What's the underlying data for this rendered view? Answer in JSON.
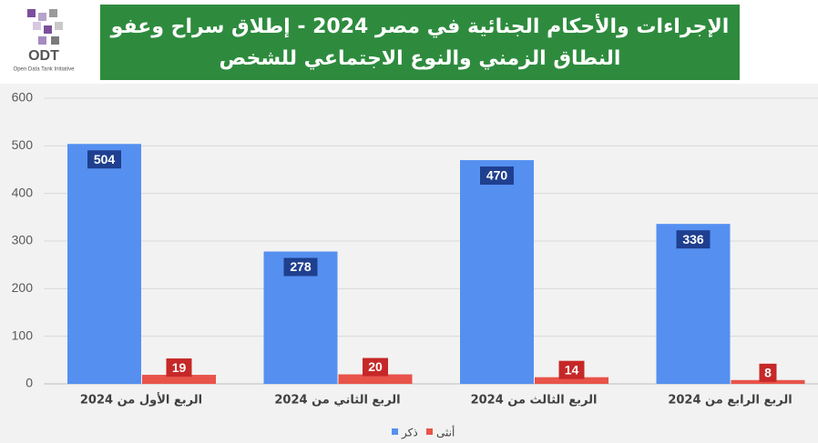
{
  "header": {
    "logo": "ODT",
    "tagline": "Open Data Tank Initiative"
  },
  "chart_data": {
    "type": "bar",
    "title": [
      "الإجراءات والأحكام الجنائية في مصر 2024 - إطلاق سراح وعفو",
      "النطاق الزمني والنوع الاجتماعي للشخص"
    ],
    "categories": [
      "الربع الأول من 2024",
      "الربع الثاني من 2024",
      "الربع الثالث من 2024",
      "الربع الرابع من 2024"
    ],
    "series": [
      {
        "name": "ذكر",
        "color": "#5590f0",
        "label_color": "#1f3f8f",
        "values": [
          504,
          278,
          470,
          336
        ]
      },
      {
        "name": "أنثى",
        "color": "#e8534a",
        "label_color": "#c62828",
        "values": [
          19,
          20,
          14,
          8
        ]
      }
    ],
    "ylim": [
      0,
      600
    ],
    "yticks": [
      0,
      100,
      200,
      300,
      400,
      500,
      600
    ],
    "grid": true
  }
}
